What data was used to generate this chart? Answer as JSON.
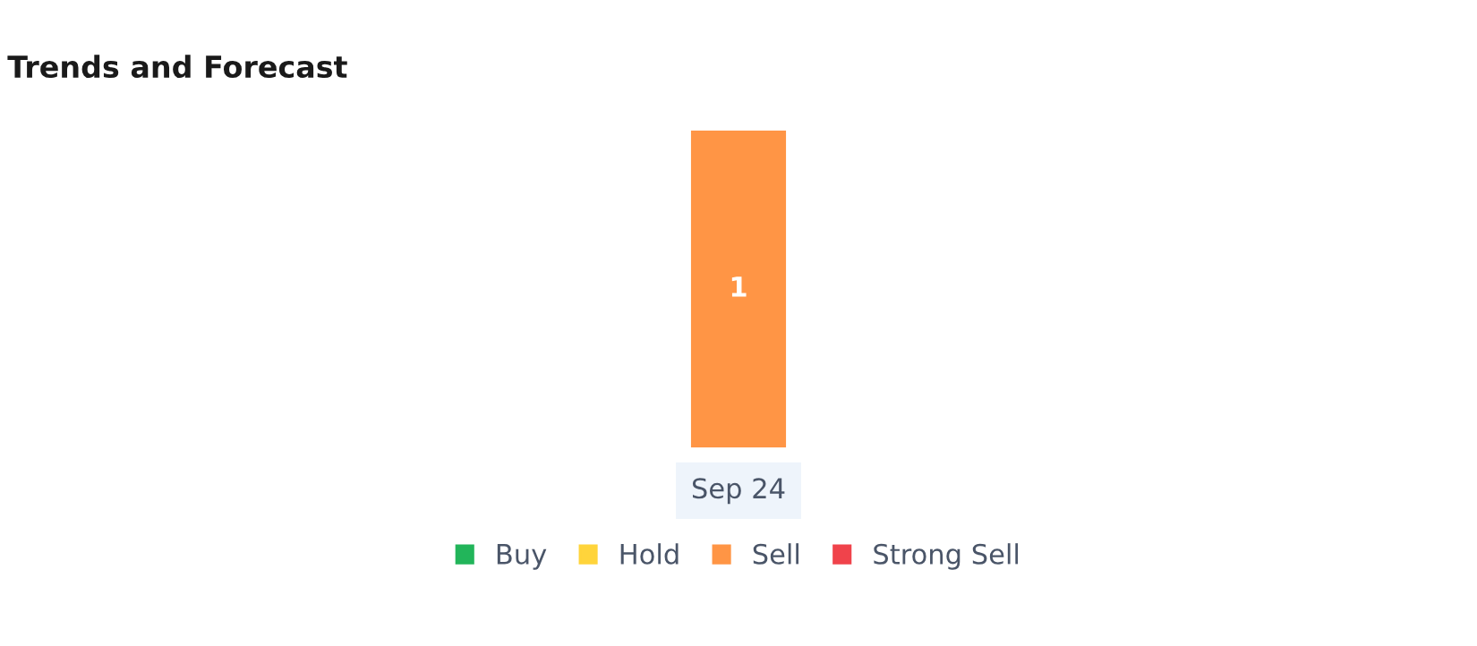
{
  "chart_data": {
    "type": "bar",
    "title": "Trends and Forecast",
    "legend": "bottom",
    "categories": [
      "Sep 24"
    ],
    "series": [
      {
        "name": "Buy",
        "color": "#22b55a",
        "values": [
          0
        ]
      },
      {
        "name": "Hold",
        "color": "#ffd43b",
        "values": [
          0
        ]
      },
      {
        "name": "Sell",
        "color": "#ff9545",
        "values": [
          1
        ],
        "value_labels": [
          "1"
        ]
      },
      {
        "name": "Strong Sell",
        "color": "#f0434b",
        "values": [
          0
        ]
      }
    ]
  }
}
